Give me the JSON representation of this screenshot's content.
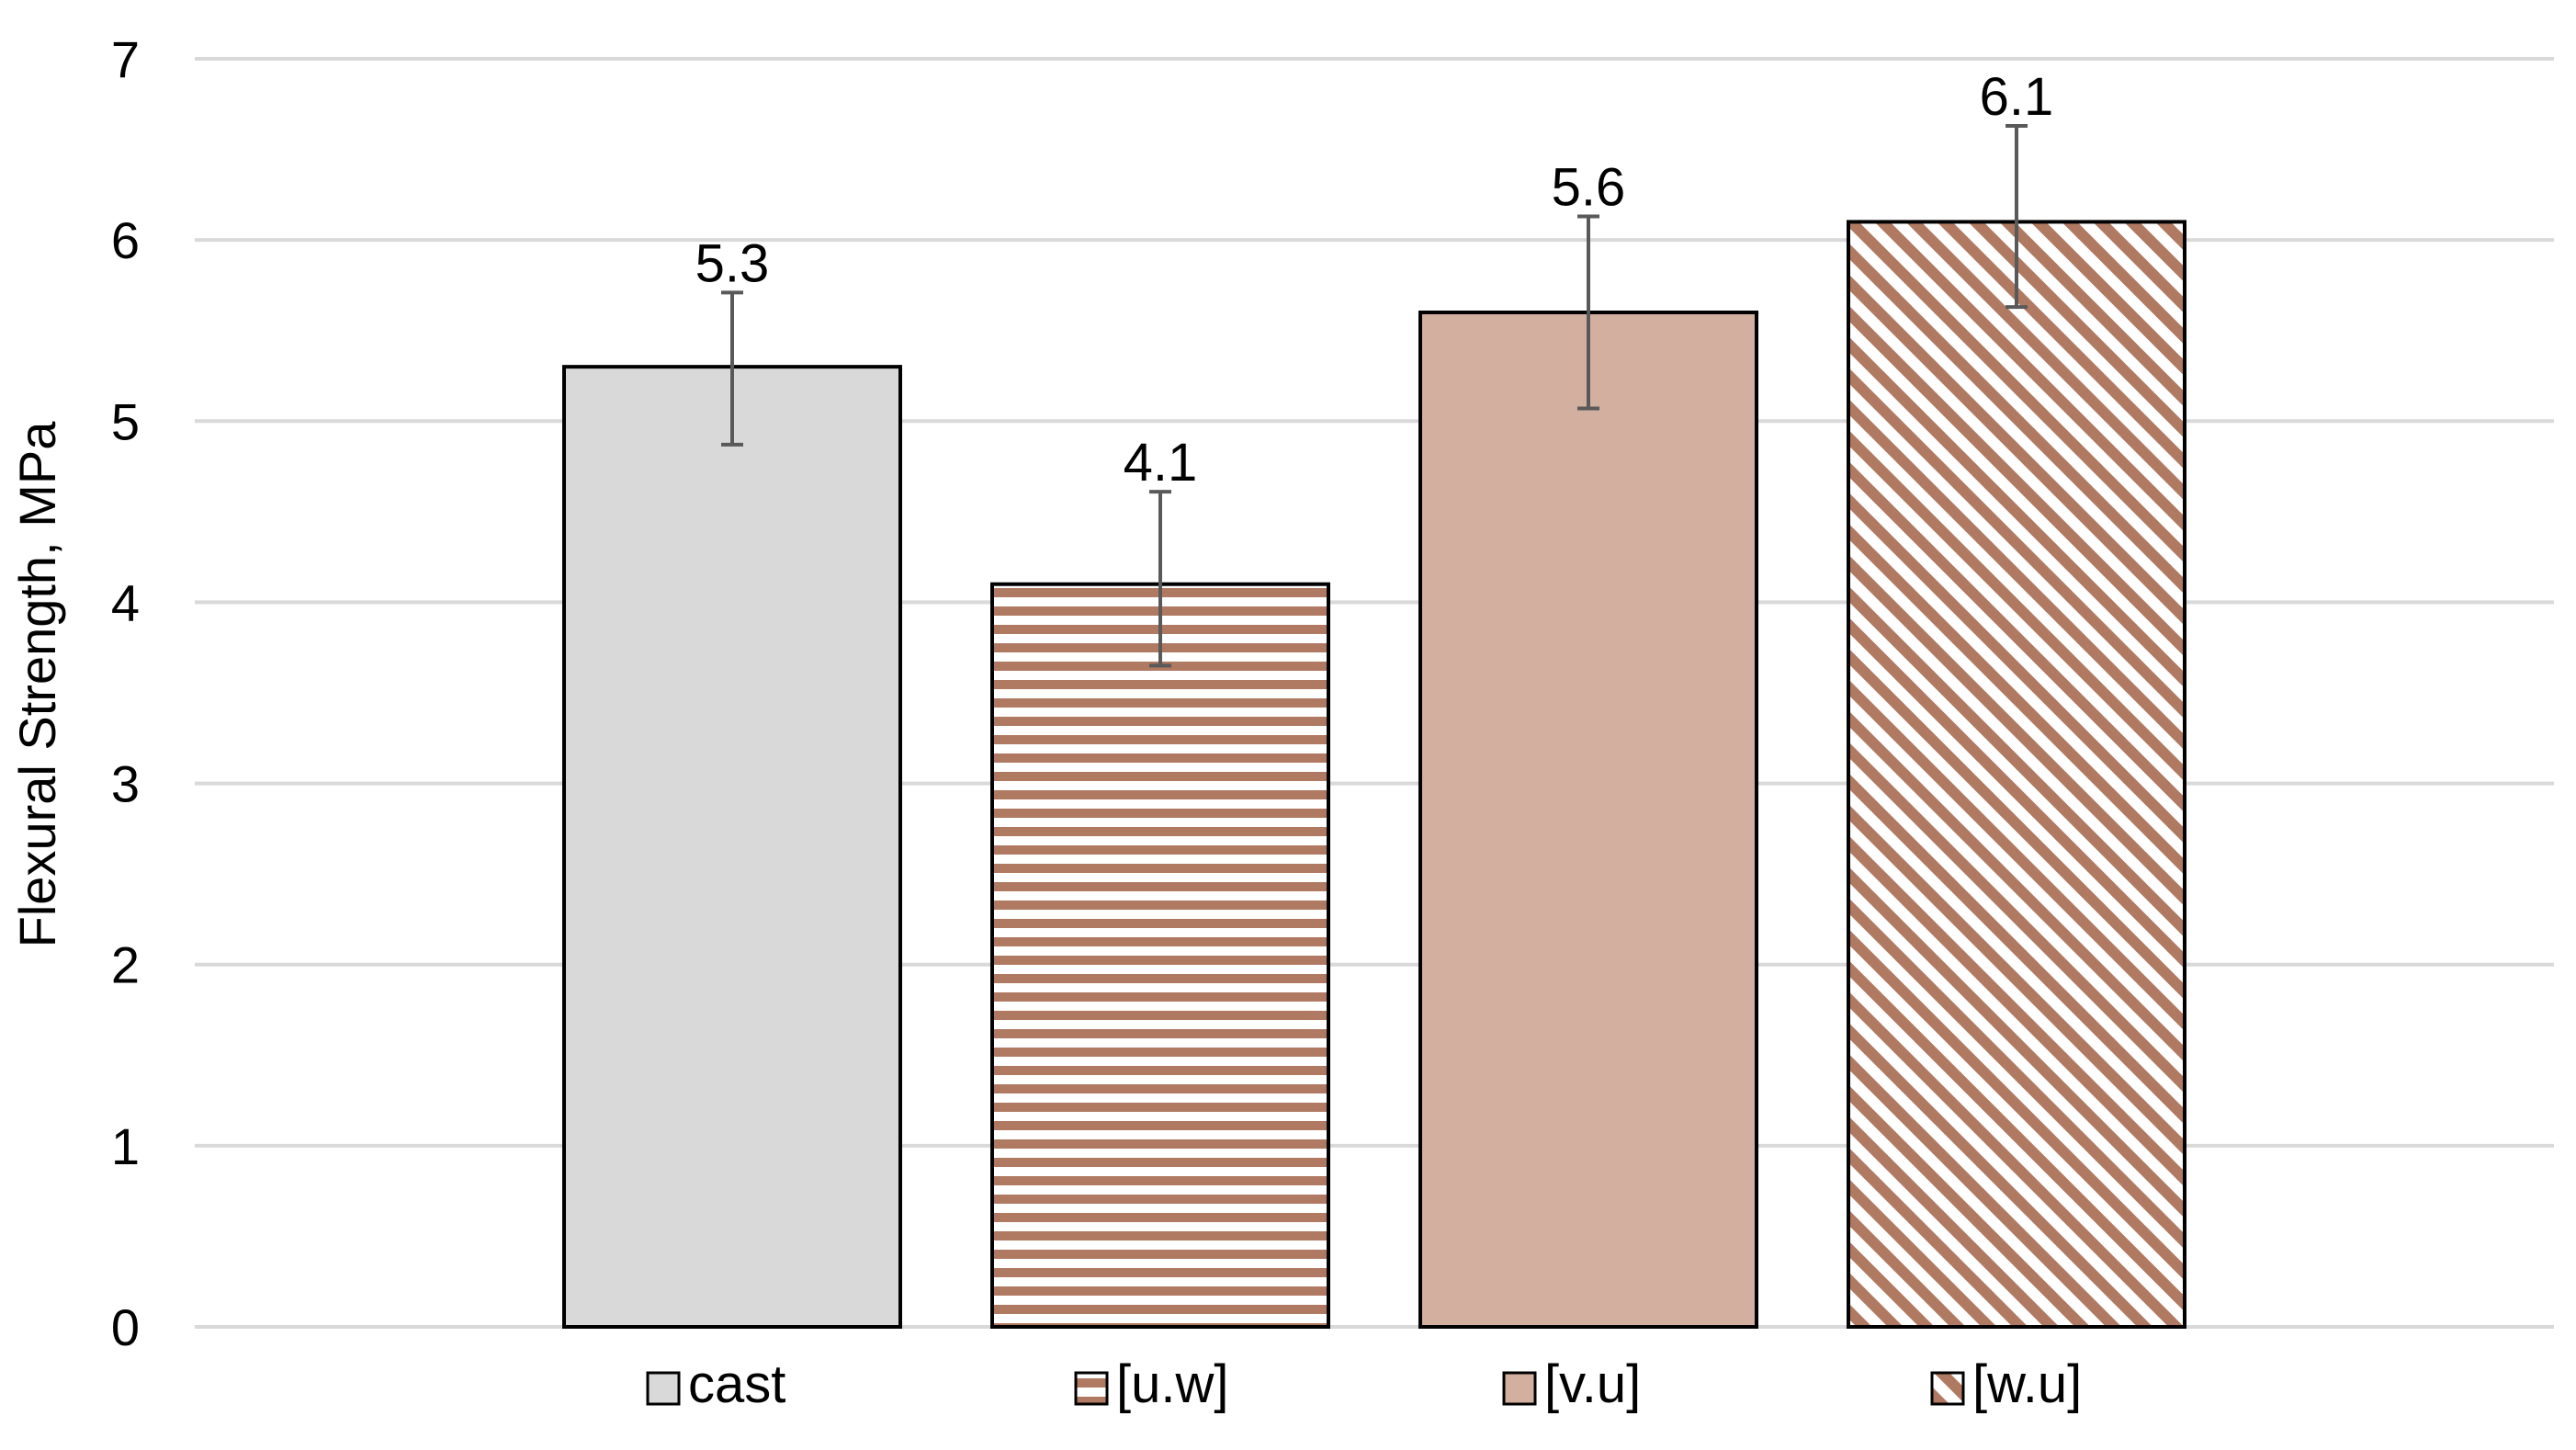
{
  "chart_data": {
    "type": "bar",
    "categories": [
      "cast",
      "[u.w]",
      "[v.u]",
      "[w.u]"
    ],
    "values": [
      5.3,
      4.1,
      5.6,
      6.1
    ],
    "value_labels": [
      "5.3",
      "4.1",
      "5.6",
      "6.1"
    ],
    "error_low": [
      4.87,
      3.65,
      5.07,
      5.63
    ],
    "error_high": [
      5.71,
      4.61,
      6.13,
      6.63
    ],
    "ylabel": "Flexural Strength, MPa",
    "xlabel": "",
    "title": "",
    "ylim": [
      0,
      7
    ],
    "yticks": [
      "0",
      "1",
      "2",
      "3",
      "4",
      "5",
      "6",
      "7"
    ],
    "grid": true,
    "legend_position": "bottom",
    "legend": [
      "cast",
      "[u.w]",
      "[v.u]",
      "[w.u]"
    ],
    "colors": {
      "cast": "#d9d9d9",
      "wood": "#d3afa0",
      "hatch": "#b07a62",
      "grid": "#d9d9d9",
      "error_bar": "#595959",
      "outline": "#000000"
    },
    "patterns": [
      "solid-gray",
      "horizontal-stripes",
      "solid-tan",
      "diagonal-stripes"
    ]
  }
}
